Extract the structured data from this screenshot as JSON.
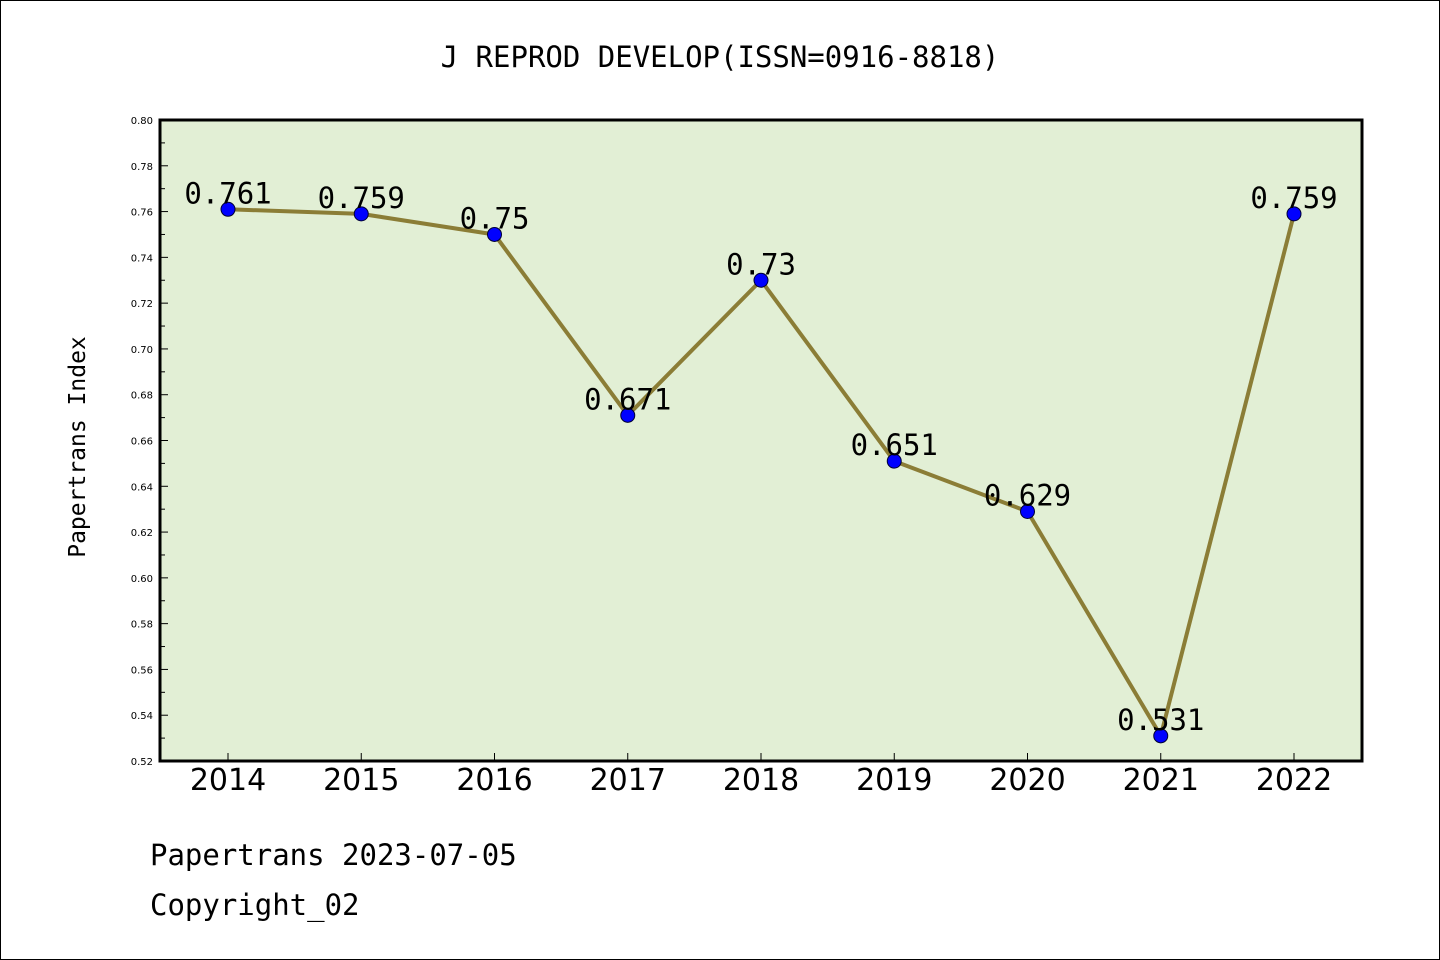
{
  "chart_data": {
    "type": "line",
    "title": "J REPROD DEVELOP(ISSN=0916-8818)",
    "xlabel": "",
    "ylabel": "Papertrans Index",
    "categories": [
      "2014",
      "2015",
      "2016",
      "2017",
      "2018",
      "2019",
      "2020",
      "2021",
      "2022"
    ],
    "values": [
      0.761,
      0.759,
      0.75,
      0.671,
      0.73,
      0.651,
      0.629,
      0.531,
      0.759
    ],
    "data_labels": [
      "0.761",
      "0.759",
      "0.75",
      "0.671",
      "0.73",
      "0.651",
      "0.629",
      "0.531",
      "0.759"
    ],
    "ylim": [
      0.52,
      0.8
    ],
    "yticks": [
      "0.52",
      "0.54",
      "0.56",
      "0.58",
      "0.60",
      "0.62",
      "0.64",
      "0.66",
      "0.68",
      "0.70",
      "0.72",
      "0.74",
      "0.76",
      "0.78",
      "0.80"
    ],
    "grid": false,
    "colors": {
      "plot_background": "#e2efd5",
      "line": "#8b7d36",
      "marker": "#0000ff"
    }
  },
  "footer": {
    "source": "Papertrans 2023-07-05",
    "copyright": "Copyright_02"
  }
}
